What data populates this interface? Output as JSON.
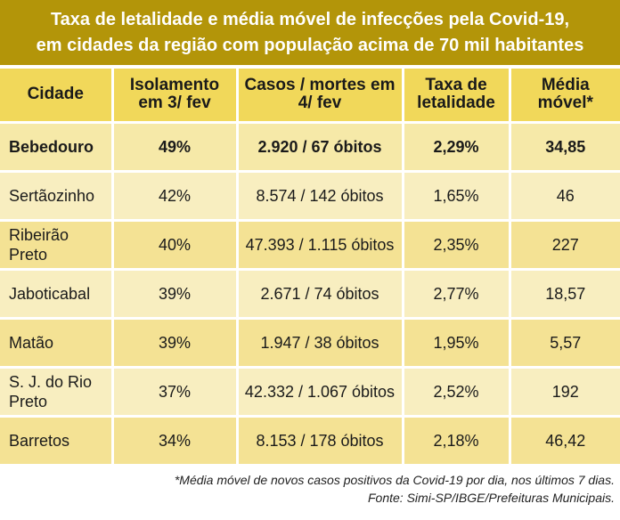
{
  "title": {
    "line1": "Taxa de letalidade e média móvel de infecções pela Covid-19,",
    "line2": "em cidades da região com população acima de 70 mil habitantes"
  },
  "table": {
    "headers": [
      "Cidade",
      "Isolamento em 3/ fev",
      "Casos / mortes em 4/ fev",
      "Taxa de letalidade",
      "Média móvel*"
    ],
    "rows": [
      [
        "Bebedouro",
        "49%",
        "2.920 / 67 óbitos",
        "2,29%",
        "34,85"
      ],
      [
        "Sertãozinho",
        "42%",
        "8.574 / 142 óbitos",
        "1,65%",
        "46"
      ],
      [
        "Ribeirão Preto",
        "40%",
        "47.393 / 1.115 óbitos",
        "2,35%",
        "227"
      ],
      [
        "Jaboticabal",
        "39%",
        "2.671 / 74 óbitos",
        "2,77%",
        "18,57"
      ],
      [
        "Matão",
        "39%",
        "1.947 / 38 óbitos",
        "1,95%",
        "5,57"
      ],
      [
        "S. J. do Rio Preto",
        "37%",
        "42.332 / 1.067 óbitos",
        "2,52%",
        "192"
      ],
      [
        "Barretos",
        "34%",
        "8.153 / 178 óbitos",
        "2,18%",
        "46,42"
      ]
    ]
  },
  "footnote": {
    "note": "*Média móvel de novos casos positivos da Covid-19 por dia, nos últimos 7 dias.",
    "source": "Fonte: Simi-SP/IBGE/Prefeituras Municipais."
  },
  "colors": {
    "banner": "#b39509",
    "header_cells": "#f1d85a",
    "row_dark": "#f4e294",
    "row_light": "#f8eec0"
  }
}
